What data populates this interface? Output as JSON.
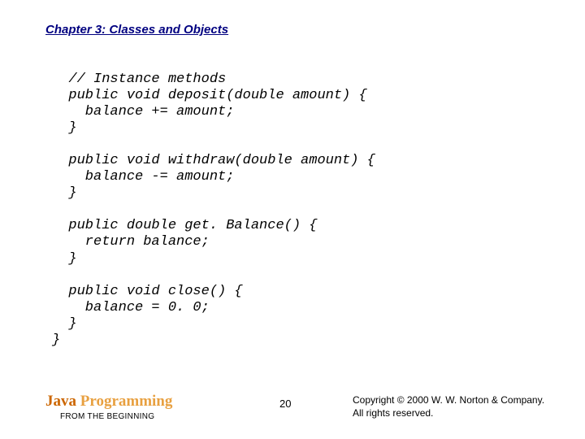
{
  "chapter_title": "Chapter 3: Classes and Objects",
  "code": {
    "l1": "  // Instance methods",
    "l2": "  public void deposit(double amount) {",
    "l3": "    balance += amount;",
    "l4": "  }",
    "l5": "",
    "l6": "  public void withdraw(double amount) {",
    "l7": "    balance -= amount;",
    "l8": "  }",
    "l9": "",
    "l10": "  public double get. Balance() {",
    "l11": "    return balance;",
    "l12": "  }",
    "l13": "",
    "l14": "  public void close() {",
    "l15": "    balance = 0. 0;",
    "l16": "  }",
    "l17": "}"
  },
  "footer": {
    "book_title_java": "Java ",
    "book_title_prog": "Programming",
    "book_subtitle": "FROM THE BEGINNING",
    "page_number": "20",
    "copyright_line1": "Copyright © 2000 W. W. Norton & Company.",
    "copyright_line2": "All rights reserved."
  },
  "colors": {
    "title_color": "#000080",
    "java_color": "#cc6600",
    "prog_color": "#e8a040",
    "text_color": "#000000",
    "background": "#ffffff"
  },
  "typography": {
    "title_fontsize": 15,
    "code_fontsize": 17,
    "book_title_fontsize": 19,
    "subtitle_fontsize": 10,
    "footer_fontsize": 12,
    "code_font": "Courier New",
    "title_font": "Arial",
    "book_title_font": "Times New Roman"
  }
}
